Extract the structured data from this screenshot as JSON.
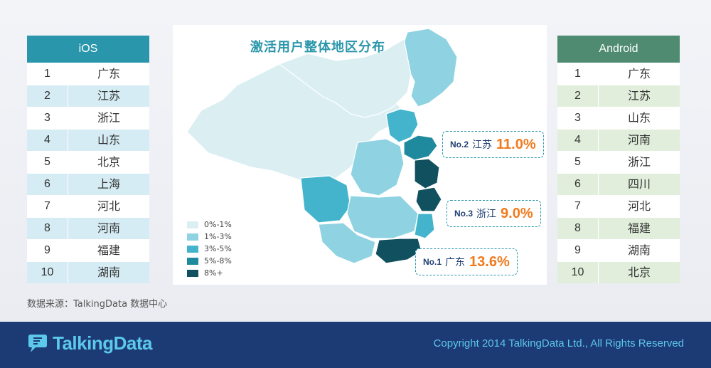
{
  "ios": {
    "header": "iOS",
    "rows": [
      {
        "rank": "1",
        "name": "广东"
      },
      {
        "rank": "2",
        "name": "江苏"
      },
      {
        "rank": "3",
        "name": "浙江"
      },
      {
        "rank": "4",
        "name": "山东"
      },
      {
        "rank": "5",
        "name": "北京"
      },
      {
        "rank": "6",
        "name": "上海"
      },
      {
        "rank": "7",
        "name": "河北"
      },
      {
        "rank": "8",
        "name": "河南"
      },
      {
        "rank": "9",
        "name": "福建"
      },
      {
        "rank": "10",
        "name": "湖南"
      }
    ]
  },
  "android": {
    "header": "Android",
    "rows": [
      {
        "rank": "1",
        "name": "广东"
      },
      {
        "rank": "2",
        "name": "江苏"
      },
      {
        "rank": "3",
        "name": "山东"
      },
      {
        "rank": "4",
        "name": "河南"
      },
      {
        "rank": "5",
        "name": "浙江"
      },
      {
        "rank": "6",
        "name": "四川"
      },
      {
        "rank": "7",
        "name": "河北"
      },
      {
        "rank": "8",
        "name": "福建"
      },
      {
        "rank": "9",
        "name": "湖南"
      },
      {
        "rank": "10",
        "name": "北京"
      }
    ]
  },
  "chart_data": {
    "type": "choropleth",
    "title": "激活用户整体地区分布",
    "legend": [
      {
        "label": "0%-1%",
        "color": "#dbeff3"
      },
      {
        "label": "1%-3%",
        "color": "#8fd3e2"
      },
      {
        "label": "3%-5%",
        "color": "#43b4cc"
      },
      {
        "label": "5%-8%",
        "color": "#1f8a9e"
      },
      {
        "label": "8%+",
        "color": "#11505f"
      }
    ],
    "callouts": [
      {
        "no": "No.2",
        "province": "江苏",
        "value": "11.0%"
      },
      {
        "no": "No.3",
        "province": "浙江",
        "value": "9.0%"
      },
      {
        "no": "No.1",
        "province": "广东",
        "value": "13.6%"
      }
    ]
  },
  "source_text": "数据来源：TalkingData 数据中心",
  "footer": {
    "logo_text": "TalkingData",
    "copyright": "Copyright 2014 TalkingData Ltd., All Rights Reserved"
  }
}
